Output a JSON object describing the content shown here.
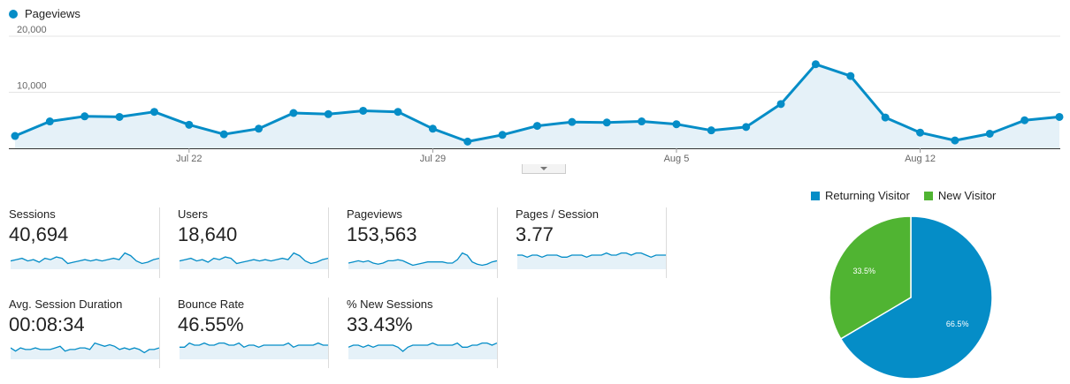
{
  "legend": {
    "series_name": "Pageviews",
    "color": "#058dc7"
  },
  "chart_data": [
    {
      "type": "area",
      "series": [
        {
          "name": "Pageviews",
          "values": [
            2200,
            4800,
            5700,
            5600,
            6500,
            4200,
            2500,
            3500,
            6300,
            6100,
            6700,
            6500,
            3500,
            1200,
            2400,
            4000,
            4700,
            4600,
            4800,
            4300,
            3200,
            3800,
            7900,
            15000,
            12900,
            5500,
            2800,
            1400,
            2600,
            5000,
            5600
          ]
        }
      ],
      "x_tick_labels": [
        "Jul 22",
        "Jul 29",
        "Aug 5",
        "Aug 12"
      ],
      "x_tick_indices": [
        5,
        12,
        19,
        26
      ],
      "y_tick_labels": [
        "20,000",
        "10,000"
      ],
      "y_tick_values": [
        20000,
        10000
      ],
      "ylim": [
        0,
        20000
      ],
      "grid": true,
      "color": "#058dc7"
    },
    {
      "type": "pie",
      "slices": [
        {
          "label": "Returning Visitor",
          "value": 66.5,
          "display": "66.5%",
          "color": "#058dc7"
        },
        {
          "label": "New Visitor",
          "value": 33.5,
          "display": "33.5%",
          "color": "#50b432"
        }
      ]
    }
  ],
  "metrics": [
    {
      "label": "Sessions",
      "value": "40,694",
      "spark": [
        5,
        6,
        7,
        5,
        6,
        4,
        7,
        6,
        8,
        7,
        3,
        4,
        5,
        6,
        5,
        6,
        5,
        6,
        7,
        6,
        11,
        9,
        5,
        3,
        4,
        6,
        7
      ]
    },
    {
      "label": "Users",
      "value": "18,640",
      "spark": [
        5,
        6,
        7,
        5,
        6,
        4,
        7,
        6,
        8,
        7,
        3,
        4,
        5,
        6,
        5,
        6,
        5,
        6,
        7,
        6,
        11,
        9,
        5,
        3,
        4,
        6,
        7
      ]
    },
    {
      "label": "Pageviews",
      "value": "153,563",
      "spark": [
        4,
        5,
        6,
        5,
        6,
        4,
        3,
        4,
        6,
        6,
        7,
        6,
        4,
        2,
        3,
        4,
        5,
        5,
        5,
        5,
        4,
        4,
        7,
        13,
        11,
        5,
        3,
        2,
        3,
        5,
        6
      ]
    },
    {
      "label": "Pages / Session",
      "value": "3.77",
      "spark": [
        6,
        6,
        5,
        6,
        6,
        5,
        6,
        6,
        6,
        5,
        5,
        6,
        6,
        6,
        5,
        6,
        6,
        6,
        7,
        6,
        6,
        7,
        7,
        6,
        7,
        7,
        6,
        5,
        6,
        6,
        6
      ]
    },
    {
      "label": "Avg. Session Duration",
      "value": "00:08:34",
      "spark": [
        6,
        4,
        6,
        5,
        5,
        6,
        5,
        5,
        5,
        6,
        7,
        4,
        5,
        5,
        6,
        6,
        5,
        9,
        8,
        7,
        8,
        7,
        5,
        6,
        5,
        6,
        5,
        3,
        5,
        5,
        6
      ]
    },
    {
      "label": "Bounce Rate",
      "value": "46.55%",
      "spark": [
        5,
        5,
        7,
        6,
        6,
        7,
        6,
        6,
        7,
        7,
        6,
        6,
        7,
        5,
        6,
        6,
        5,
        6,
        6,
        6,
        6,
        6,
        7,
        5,
        6,
        6,
        6,
        6,
        7,
        6,
        6
      ]
    },
    {
      "label": "% New Sessions",
      "value": "33.43%",
      "spark": [
        5,
        6,
        6,
        5,
        6,
        5,
        6,
        6,
        6,
        6,
        5,
        3,
        5,
        6,
        6,
        6,
        6,
        7,
        6,
        6,
        6,
        6,
        7,
        5,
        5,
        6,
        6,
        7,
        7,
        6,
        7
      ]
    }
  ]
}
